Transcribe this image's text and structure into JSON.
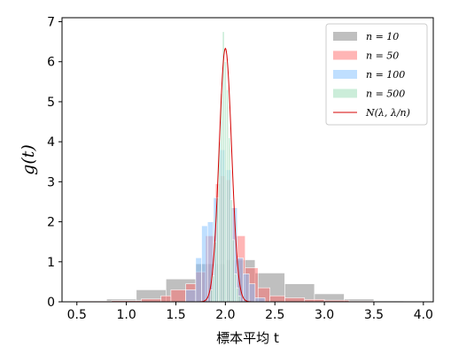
{
  "chart_data": {
    "type": "histogram",
    "xlabel": "標本平均 t",
    "ylabel": "g(t)",
    "xlim": [
      0.35,
      4.1
    ],
    "ylim": [
      0,
      7.1
    ],
    "xticks": [
      0.5,
      1.0,
      1.5,
      2.0,
      2.5,
      3.0,
      3.5,
      4.0
    ],
    "xtick_labels": [
      "0.5",
      "1.0",
      "1.5",
      "2.0",
      "2.5",
      "3.0",
      "3.5",
      "4.0"
    ],
    "yticks": [
      0,
      1,
      2,
      3,
      4,
      5,
      6,
      7
    ],
    "ytick_labels": [
      "0",
      "1",
      "2",
      "3",
      "4",
      "5",
      "6",
      "7"
    ],
    "legend_position": "top-right",
    "series": [
      {
        "name": "n = 10",
        "kind": "hist",
        "color": "#808080",
        "bin_edges": [
          0.8,
          1.1,
          1.4,
          1.7,
          2.0,
          2.3,
          2.6,
          2.9,
          3.2,
          3.5,
          3.8
        ],
        "heights": [
          0.07,
          0.3,
          0.57,
          0.95,
          1.05,
          0.72,
          0.45,
          0.2,
          0.07,
          0.02
        ]
      },
      {
        "name": "n = 50",
        "kind": "hist",
        "color": "#ff6b6b",
        "bin_edges": [
          0.5,
          0.85,
          1.15,
          1.35,
          1.45,
          1.6,
          1.7,
          1.8,
          1.9,
          1.95,
          2.0,
          2.05,
          2.1,
          2.2,
          2.33,
          2.45,
          2.6,
          2.8,
          3.0,
          3.25,
          3.5
        ],
        "heights": [
          0.02,
          0.03,
          0.07,
          0.15,
          0.3,
          0.45,
          0.75,
          1.65,
          2.95,
          3.15,
          3.05,
          2.35,
          1.65,
          0.85,
          0.35,
          0.15,
          0.1,
          0.06,
          0.04,
          0.02
        ]
      },
      {
        "name": "n = 100",
        "kind": "hist",
        "color": "#7fbfff",
        "bin_edges": [
          1.6,
          1.7,
          1.76,
          1.82,
          1.88,
          1.94,
          2.0,
          2.06,
          2.12,
          2.18,
          2.24,
          2.3,
          2.4
        ],
        "heights": [
          0.3,
          1.1,
          1.9,
          2.0,
          2.6,
          3.8,
          3.3,
          2.35,
          1.1,
          0.7,
          0.45,
          0.1
        ]
      },
      {
        "name": "n = 500",
        "kind": "hist",
        "color": "#98dcb4",
        "bin_edges": [
          1.85,
          1.87,
          1.89,
          1.91,
          1.93,
          1.95,
          1.97,
          1.99,
          2.01,
          2.03,
          2.05,
          2.07,
          2.09,
          2.11,
          2.13,
          2.15
        ],
        "heights": [
          0.3,
          0.65,
          1.5,
          2.6,
          4.0,
          5.2,
          6.75,
          6.0,
          5.3,
          4.1,
          2.55,
          1.55,
          0.7,
          0.35,
          0.15
        ]
      },
      {
        "name": "N(λ, λ/n)",
        "kind": "line",
        "color": "#d40000",
        "x_range": [
          0.5,
          3.5
        ],
        "mean": 2.0,
        "sd": 0.063
      }
    ]
  }
}
